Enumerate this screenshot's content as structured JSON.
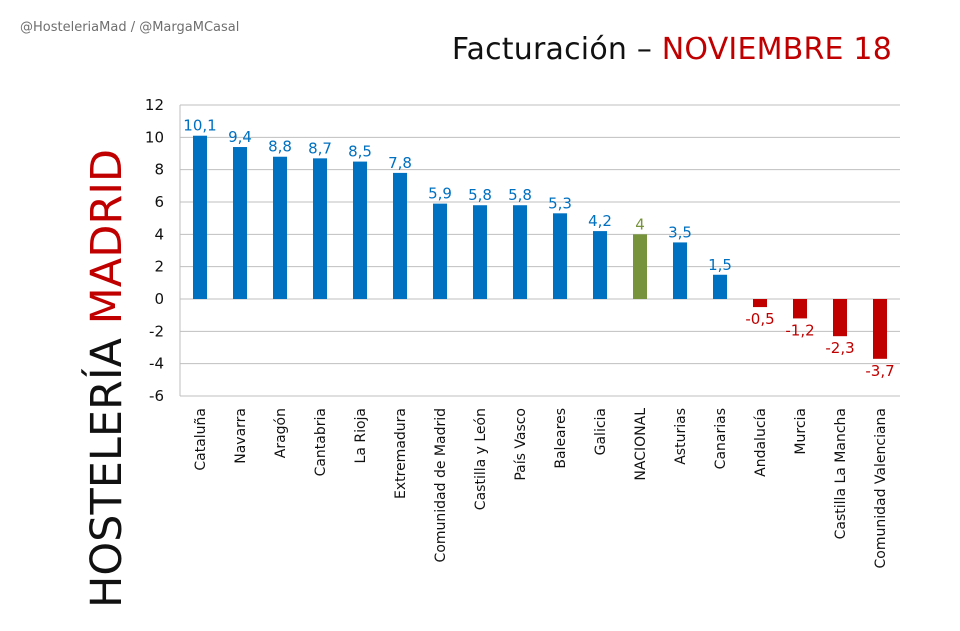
{
  "header": {
    "credit": "@HosteleriaMad / @MargaMCasal",
    "title_prefix": "Facturación – ",
    "title_highlight": "NOVIEMBRE 18"
  },
  "side_title": {
    "part1": "HOSTELERÍA ",
    "part2": "MADRID"
  },
  "colors": {
    "positive": "#0070c0",
    "negative": "#c00000",
    "national": "#77933c",
    "grid": "#bfbfbf"
  },
  "chart_data": {
    "type": "bar",
    "title": "Facturación – NOVIEMBRE 18",
    "categories": [
      "Cataluña",
      "Navarra",
      "Aragón",
      "Cantabria",
      "La Rioja",
      "Extremadura",
      "Comunidad de Madrid",
      "Castilla y León",
      "País Vasco",
      "Baleares",
      "Galicia",
      "NACIONAL",
      "Asturias",
      "Canarias",
      "Andalucía",
      "Murcia",
      "Castilla La Mancha",
      "Comunidad Valenciana"
    ],
    "values": [
      10.1,
      9.4,
      8.8,
      8.7,
      8.5,
      7.8,
      5.9,
      5.8,
      5.8,
      5.3,
      4.2,
      4,
      3.5,
      1.5,
      -0.5,
      -1.2,
      -2.3,
      -3.7
    ],
    "value_labels": [
      "10,1",
      "9,4",
      "8,8",
      "8,7",
      "8,5",
      "7,8",
      "5,9",
      "5,8",
      "5,8",
      "5,3",
      "4,2",
      "4",
      "3,5",
      "1,5",
      "-0,5",
      "-1,2",
      "-2,3",
      "-3,7"
    ],
    "highlight_category": "NACIONAL",
    "ylim": [
      -6,
      12
    ],
    "yticks": [
      12,
      10,
      8,
      6,
      4,
      2,
      0,
      -2,
      -4,
      -6
    ],
    "grid": true,
    "legend": "none"
  }
}
